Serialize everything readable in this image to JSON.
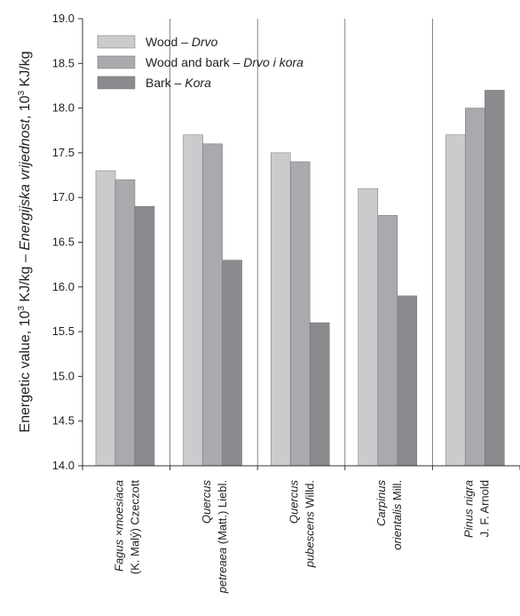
{
  "chart_data": {
    "type": "bar",
    "title": "",
    "ylabel": {
      "prefix": "Energetic value, 10",
      "prefix_sup": "3",
      "prefix_unit": " KJ/kg  –  ",
      "italic": "Energijska vrijednost",
      "suffix": ", 10",
      "suffix_sup": "3",
      "suffix_unit": " KJ/kg"
    },
    "ylim": [
      14.0,
      19.0
    ],
    "yticks": [
      "14.0",
      "14.5",
      "15.0",
      "15.5",
      "16.0",
      "16.5",
      "17.0",
      "17.5",
      "18.0",
      "18.5",
      "19.0"
    ],
    "grid": "vertical separators between species",
    "legend_position": "top-left",
    "categories": [
      {
        "line1": [
          {
            "t": "Fagus ×moesiaca",
            "i": true
          }
        ],
        "line2": [
          {
            "t": "(K. Malý) Czeczott",
            "i": false
          }
        ]
      },
      {
        "line1": [
          {
            "t": "Quercus",
            "i": true
          }
        ],
        "line2": [
          {
            "t": "petreaea",
            "i": true
          },
          {
            "t": " (Matt.) Liebl.",
            "i": false
          }
        ]
      },
      {
        "line1": [
          {
            "t": "Quercus",
            "i": true
          }
        ],
        "line2": [
          {
            "t": "pubescens",
            "i": true
          },
          {
            "t": " Willd.",
            "i": false
          }
        ]
      },
      {
        "line1": [
          {
            "t": "Carpinus",
            "i": true
          }
        ],
        "line2": [
          {
            "t": "orientalis",
            "i": true
          },
          {
            "t": " Mill.",
            "i": false
          }
        ]
      },
      {
        "line1": [
          {
            "t": "Pinus nigra",
            "i": true
          }
        ],
        "line2": [
          {
            "t": "J. F. Arnold",
            "i": false
          }
        ]
      }
    ],
    "series": [
      {
        "name": "Wood",
        "name_local": "Drvo",
        "color": "#cbcbcd",
        "values": [
          17.3,
          17.7,
          17.5,
          17.1,
          17.7
        ]
      },
      {
        "name": "Wood and bark",
        "name_local": "Drvo i kora",
        "color": "#a9aaad",
        "values": [
          17.2,
          17.6,
          17.4,
          16.8,
          18.0
        ]
      },
      {
        "name": "Bark",
        "name_local": "Kora",
        "color": "#8a8b8e",
        "values": [
          16.9,
          16.3,
          15.6,
          15.9,
          18.2
        ]
      }
    ]
  }
}
